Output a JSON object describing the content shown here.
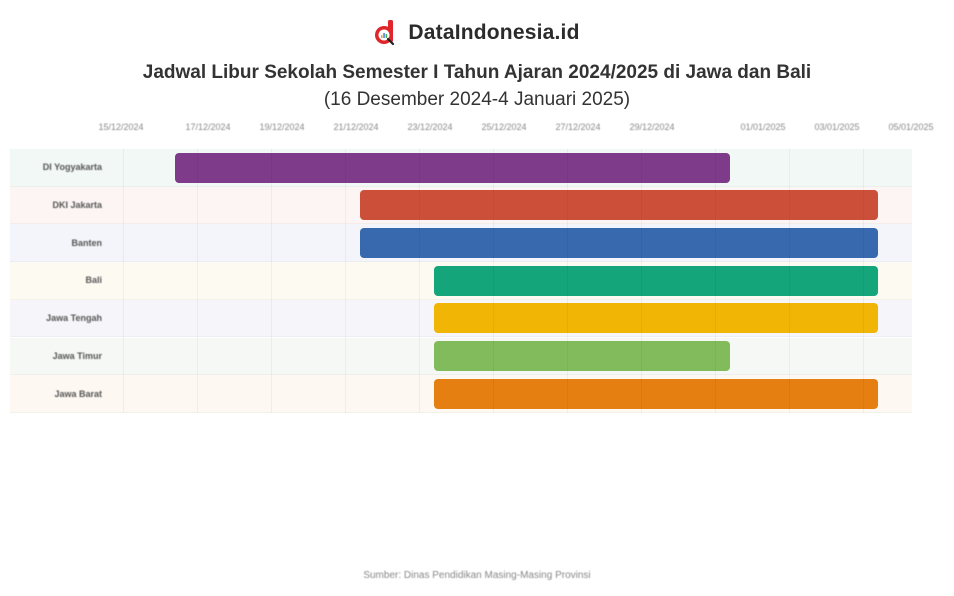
{
  "brand": {
    "name": "DataIndonesia.id",
    "logo_icon": "dataindonesia-logo-icon",
    "logo_color": "#e0262b"
  },
  "header": {
    "title": "Jadwal Libur Sekolah Semester I Tahun Ajaran 2024/2025 di Jawa dan Bali",
    "subtitle": "(16 Desember 2024-4 Januari 2025)"
  },
  "axis": {
    "ticks": [
      "15/12/2024",
      "17/12/2024",
      "19/12/2024",
      "21/12/2024",
      "23/12/2024",
      "25/12/2024",
      "27/12/2024",
      "29/12/2024",
      "01/01/2025",
      "03/01/2025",
      "05/01/2025"
    ]
  },
  "source": "Sumber: Dinas Pendidikan Masing-Masing Provinsi",
  "chart_data": {
    "type": "bar",
    "subtype": "gantt-horizontal",
    "title": "Jadwal Libur Sekolah Semester I Tahun Ajaran 2024/2025 di Jawa dan Bali",
    "subtitle": "(16 Desember 2024-4 Januari 2025)",
    "xlabel": "",
    "ylabel": "",
    "x_range": [
      "2024-12-15",
      "2025-01-05"
    ],
    "x_ticks": [
      "15/12/2024",
      "17/12/2024",
      "19/12/2024",
      "21/12/2024",
      "23/12/2024",
      "25/12/2024",
      "27/12/2024",
      "29/12/2024",
      "01/01/2025",
      "03/01/2025",
      "05/01/2025"
    ],
    "grid": true,
    "legend": "none",
    "categories": [
      "DI Yogyakarta",
      "DKI Jakarta",
      "Banten",
      "Bali",
      "Jawa Tengah",
      "Jawa Timur",
      "Jawa Barat"
    ],
    "series": [
      {
        "name": "DI Yogyakarta",
        "start": "2024-12-16",
        "end": "2024-12-31",
        "color": "#7e3b8a",
        "row_bg": "#f2f8f6"
      },
      {
        "name": "DKI Jakarta",
        "start": "2024-12-21",
        "end": "2025-01-04",
        "color": "#cc4f3a",
        "row_bg": "#fcf5f3"
      },
      {
        "name": "Banten",
        "start": "2024-12-21",
        "end": "2025-01-04",
        "color": "#3868ad",
        "row_bg": "#f4f5fa"
      },
      {
        "name": "Bali",
        "start": "2024-12-23",
        "end": "2025-01-04",
        "color": "#14a57a",
        "row_bg": "#fdfaf2"
      },
      {
        "name": "Jawa Tengah",
        "start": "2024-12-23",
        "end": "2025-01-04",
        "color": "#f1b505",
        "row_bg": "#f6f5f9"
      },
      {
        "name": "Jawa Timur",
        "start": "2024-12-23",
        "end": "2024-12-31",
        "color": "#82bb5c",
        "row_bg": "#f6f8f5"
      },
      {
        "name": "Jawa Barat",
        "start": "2024-12-23",
        "end": "2025-01-04",
        "color": "#e57f12",
        "row_bg": "#fdf8f2"
      }
    ],
    "source": "Sumber: Dinas Pendidikan Masing-Masing Provinsi"
  }
}
